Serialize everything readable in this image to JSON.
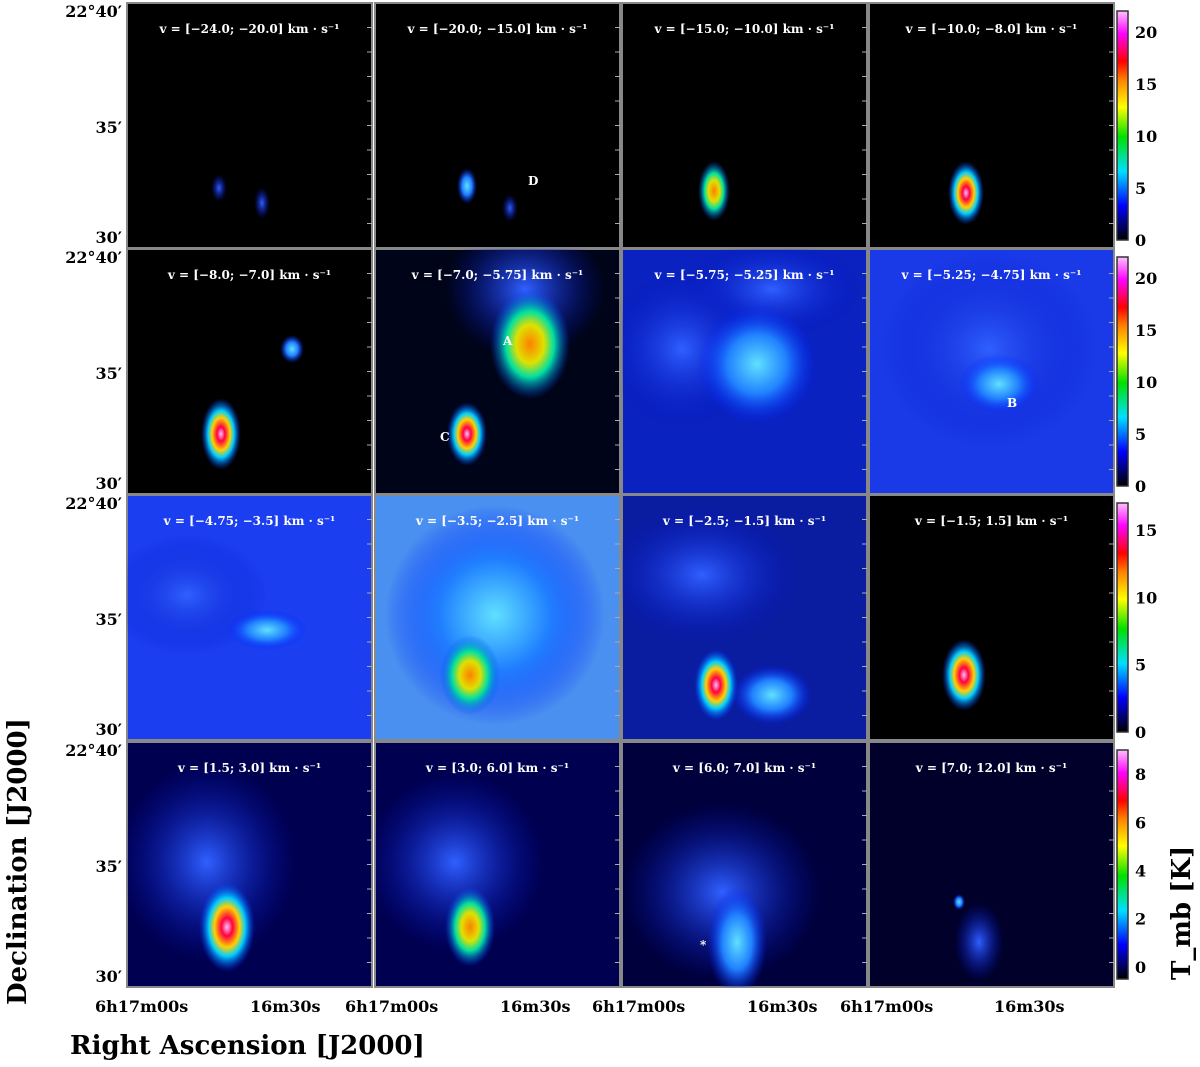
{
  "chart_data": {
    "type": "heatmap",
    "xlabel": "Right Ascension [J2000]",
    "ylabel": "Declination [J2000]",
    "x_ticks": [
      "6h17m00s",
      "16m30s"
    ],
    "y_ticks": [
      "22°40′",
      "35′",
      "30′"
    ],
    "colorbar_label": "T_mb [K]",
    "colormap": [
      "#000000",
      "#0000ff",
      "#00e0ff",
      "#00e000",
      "#ffff00",
      "#ff8000",
      "#ff0000",
      "#ff00ff",
      "#ffc0ff"
    ],
    "rows": [
      {
        "colorbar_range": [
          0,
          22
        ],
        "colorbar_ticks": [
          "0",
          "5",
          "10",
          "15",
          "20"
        ],
        "panels": [
          {
            "label": "v = [−24.0; −20.0] km · s⁻¹",
            "marker": ""
          },
          {
            "label": "v = [−20.0; −15.0] km · s⁻¹",
            "marker": "D"
          },
          {
            "label": "v = [−15.0; −10.0] km · s⁻¹",
            "marker": ""
          },
          {
            "label": "v = [−10.0; −8.0] km · s⁻¹",
            "marker": ""
          }
        ]
      },
      {
        "colorbar_range": [
          0,
          22
        ],
        "colorbar_ticks": [
          "0",
          "5",
          "10",
          "15",
          "20"
        ],
        "panels": [
          {
            "label": "v = [−8.0; −7.0] km · s⁻¹",
            "marker": ""
          },
          {
            "label": "v = [−7.0; −5.75] km · s⁻¹",
            "marker": "A, C"
          },
          {
            "label": "v = [−5.75; −5.25] km · s⁻¹",
            "marker": ""
          },
          {
            "label": "v = [−5.25; −4.75] km · s⁻¹",
            "marker": "B"
          }
        ]
      },
      {
        "colorbar_range": [
          0,
          17
        ],
        "colorbar_ticks": [
          "0",
          "5",
          "10",
          "15"
        ],
        "panels": [
          {
            "label": "v = [−4.75; −3.5] km · s⁻¹",
            "marker": ""
          },
          {
            "label": "v = [−3.5; −2.5] km · s⁻¹",
            "marker": ""
          },
          {
            "label": "v = [−2.5; −1.5] km · s⁻¹",
            "marker": ""
          },
          {
            "label": "v = [−1.5; 1.5] km · s⁻¹",
            "marker": ""
          }
        ]
      },
      {
        "colorbar_range": [
          -0.5,
          9
        ],
        "colorbar_ticks": [
          "0",
          "2",
          "4",
          "6",
          "8"
        ],
        "panels": [
          {
            "label": "v = [1.5; 3.0] km · s⁻¹",
            "marker": ""
          },
          {
            "label": "v = [3.0; 6.0] km · s⁻¹",
            "marker": ""
          },
          {
            "label": "v = [6.0; 7.0] km · s⁻¹",
            "marker": "*"
          },
          {
            "label": "v = [7.0; 12.0] km · s⁻¹",
            "marker": ""
          }
        ]
      }
    ]
  }
}
